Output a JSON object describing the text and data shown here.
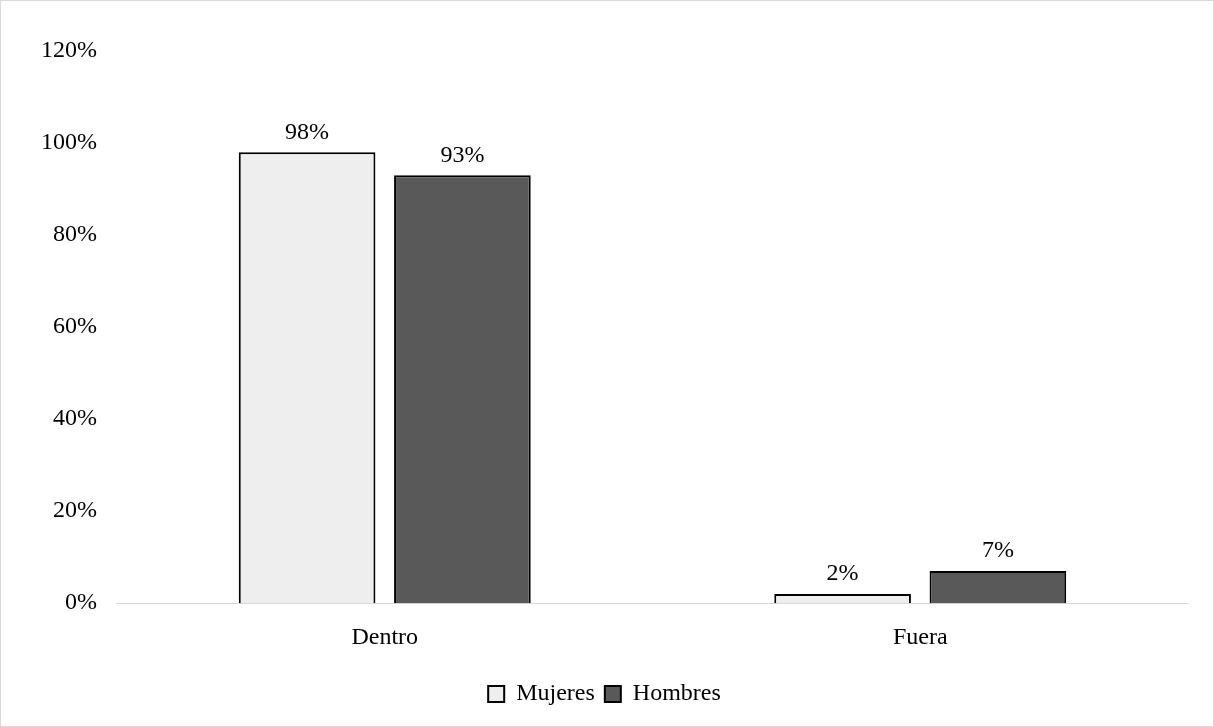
{
  "chart_data": {
    "type": "bar",
    "categories": [
      "Dentro",
      "Fuera"
    ],
    "series": [
      {
        "name": "Mujeres",
        "color": "#eeeeee",
        "values": [
          98,
          2
        ],
        "value_labels": [
          "98%",
          "2%"
        ]
      },
      {
        "name": "Hombres",
        "color": "#595959",
        "values": [
          93,
          7
        ],
        "value_labels": [
          "93%",
          "7%"
        ]
      }
    ],
    "ylim": [
      0,
      120
    ],
    "yticks": [
      {
        "value": 0,
        "label": "0%"
      },
      {
        "value": 20,
        "label": "20%"
      },
      {
        "value": 40,
        "label": "40%"
      },
      {
        "value": 60,
        "label": "60%"
      },
      {
        "value": 80,
        "label": "80%"
      },
      {
        "value": 100,
        "label": "100%"
      },
      {
        "value": 120,
        "label": "120%"
      }
    ],
    "grid": false,
    "legend": "bottom"
  }
}
